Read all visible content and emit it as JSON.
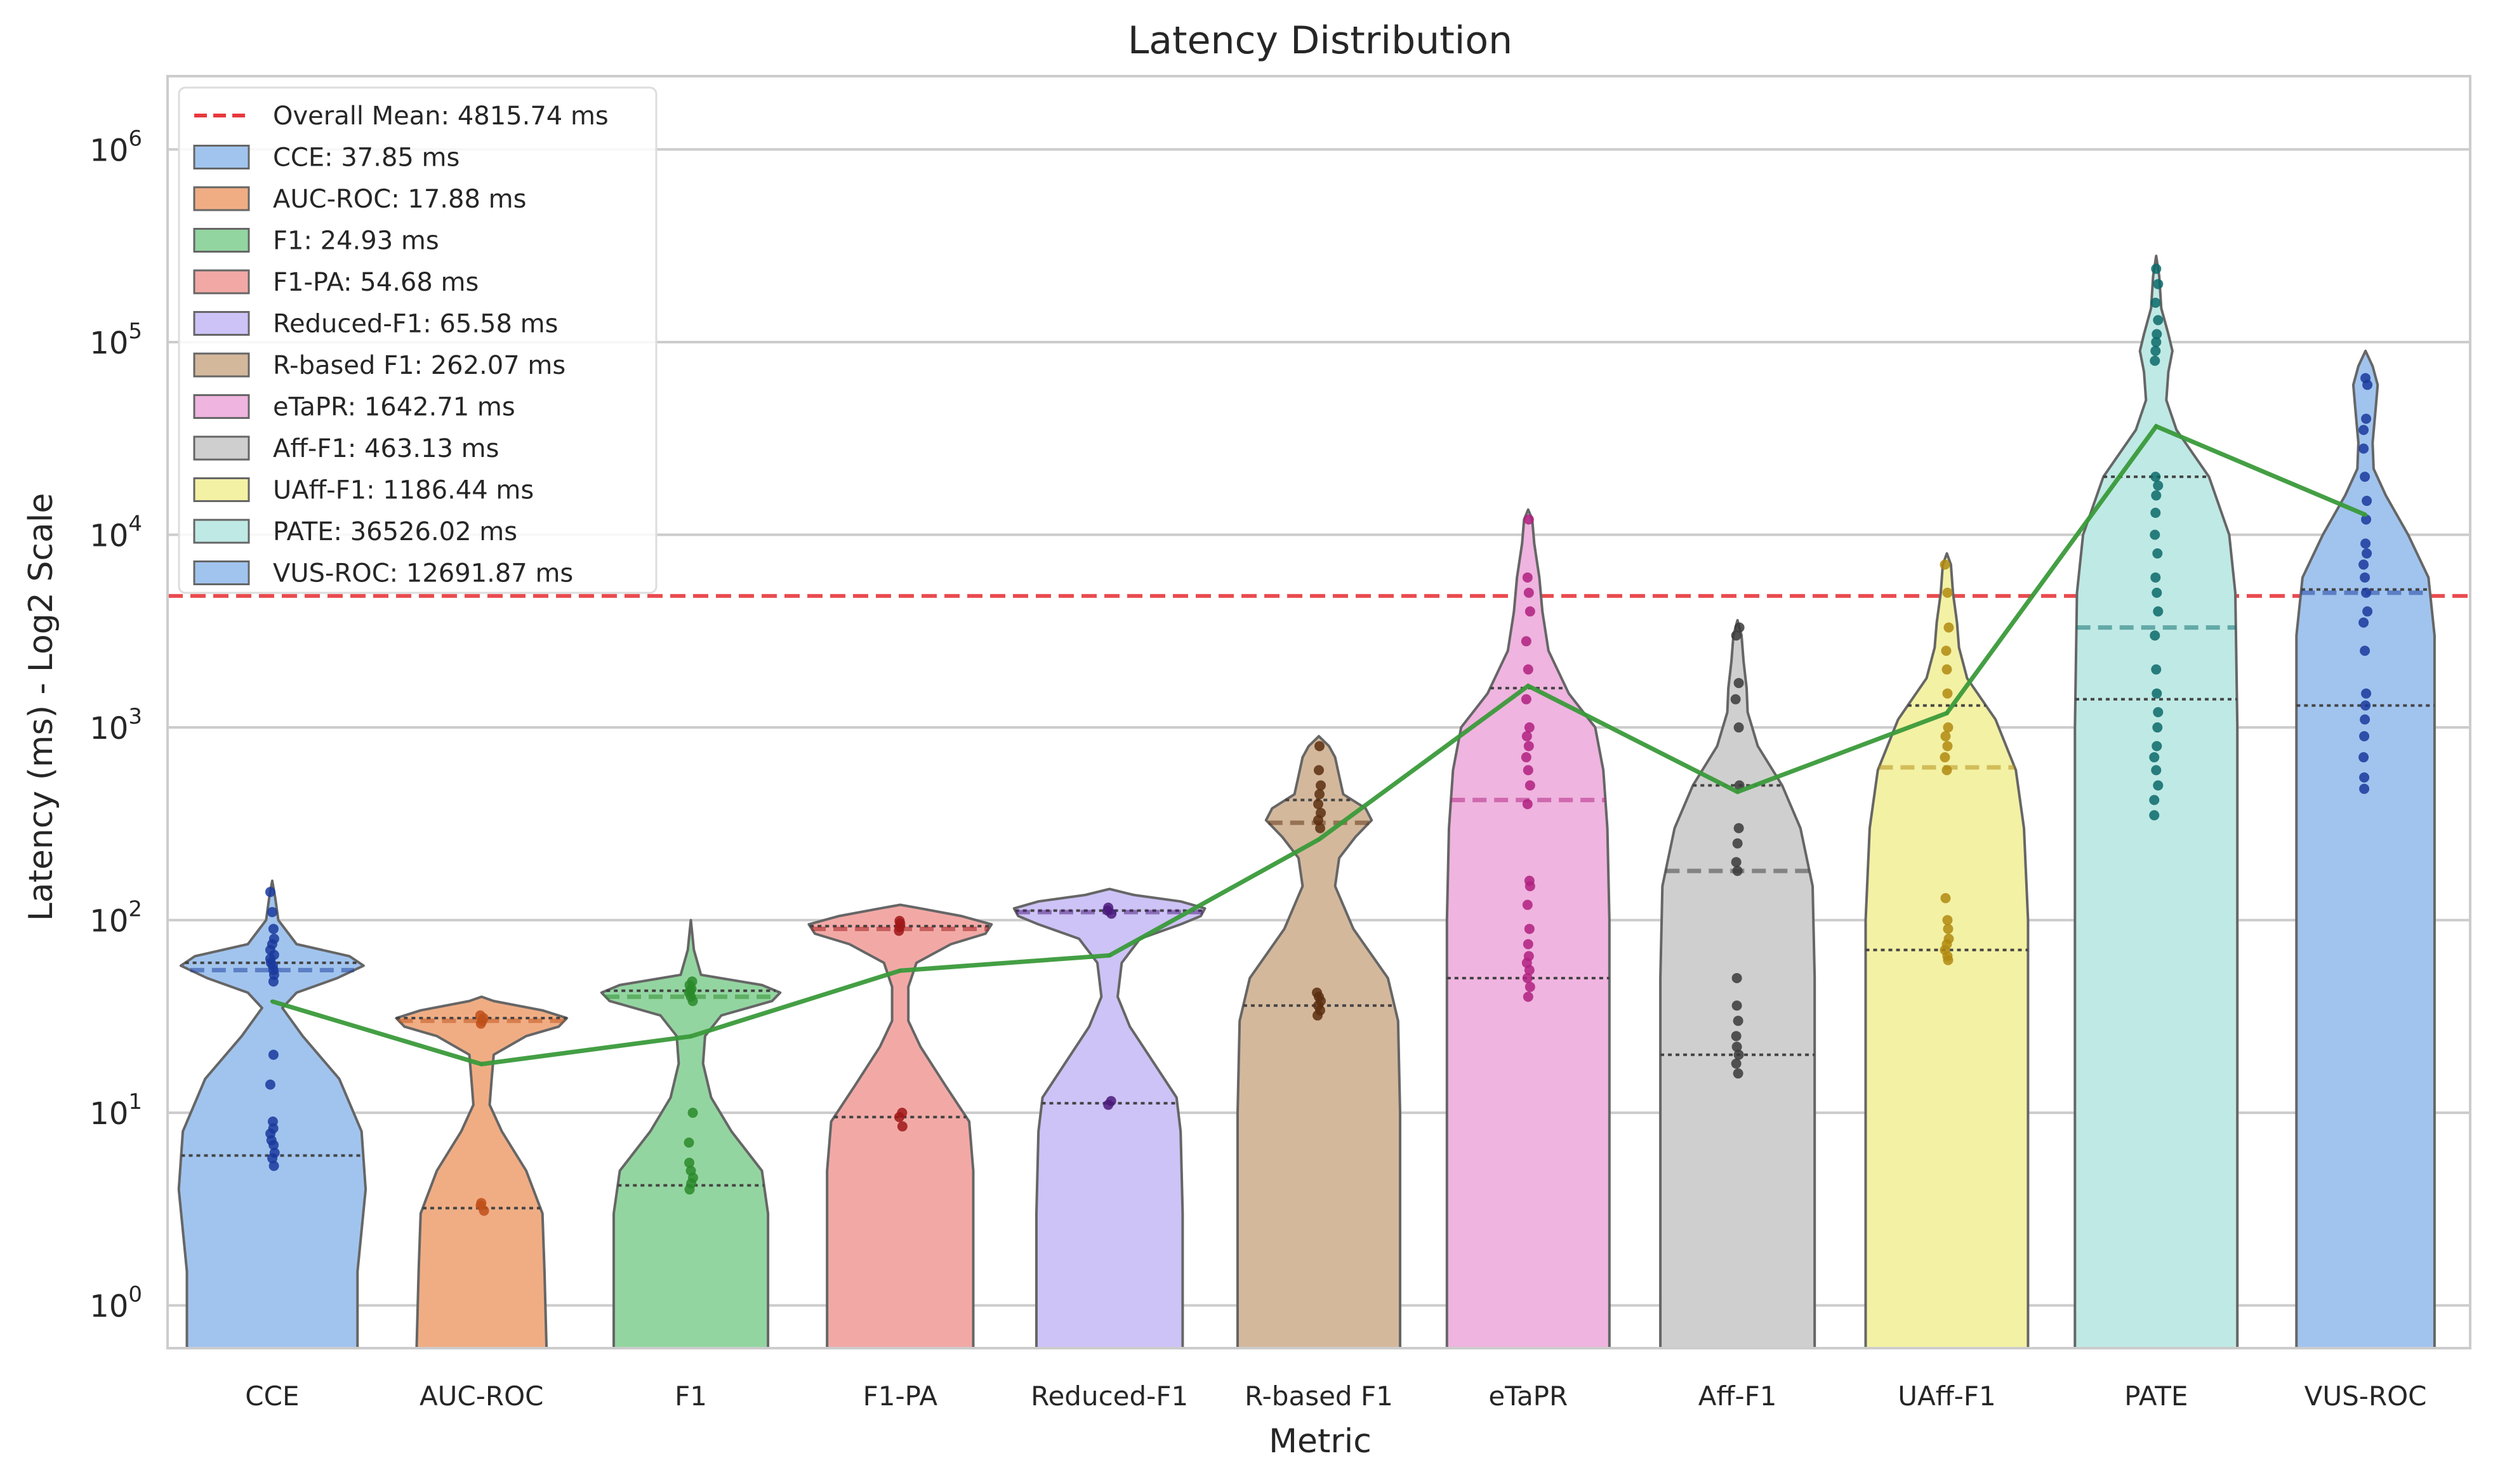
{
  "chart_data": {
    "type": "violin",
    "title": "Latency Distribution",
    "xlabel": "Metric",
    "ylabel": "Latency (ms) - Log2 Scale",
    "yscale": "log",
    "ylim": [
      0.6,
      2400000
    ],
    "y_ticks": [
      1,
      10,
      100,
      1000,
      10000,
      100000,
      1000000
    ],
    "y_tick_labels": [
      {
        "base": "10",
        "exp": "0"
      },
      {
        "base": "10",
        "exp": "1"
      },
      {
        "base": "10",
        "exp": "2"
      },
      {
        "base": "10",
        "exp": "3"
      },
      {
        "base": "10",
        "exp": "4"
      },
      {
        "base": "10",
        "exp": "5"
      },
      {
        "base": "10",
        "exp": "6"
      }
    ],
    "grid": true,
    "legend_position": "top-left",
    "overall_mean": {
      "value": 4815.74,
      "label": "Overall Mean: 4815.74 ms",
      "color": "#e8383d"
    },
    "mean_line_color": "#3a9a3a",
    "categories": [
      "CCE",
      "AUC-ROC",
      "F1",
      "F1-PA",
      "Reduced-F1",
      "R-based F1",
      "eTaPR",
      "Aff-F1",
      "UAff-F1",
      "PATE",
      "VUS-ROC"
    ],
    "series": [
      {
        "name": "CCE",
        "label": "CCE: 37.85 ms",
        "mean": 37.85,
        "color": "#a1c4ee",
        "dot": "#1a3a9c",
        "q1": 6,
        "median": 55,
        "q3": 60,
        "profile": [
          [
            0.6,
            0.42
          ],
          [
            1.5,
            0.42
          ],
          [
            4,
            0.46
          ],
          [
            8,
            0.44
          ],
          [
            15,
            0.33
          ],
          [
            25,
            0.15
          ],
          [
            35,
            0.05
          ],
          [
            42,
            0.12
          ],
          [
            50,
            0.32
          ],
          [
            58,
            0.45
          ],
          [
            65,
            0.38
          ],
          [
            75,
            0.12
          ],
          [
            100,
            0.03
          ],
          [
            130,
            0.015
          ],
          [
            160,
            0
          ]
        ],
        "points": [
          5.3,
          5.8,
          6.2,
          6.8,
          7.2,
          7.8,
          8.3,
          9,
          14,
          20,
          48,
          52,
          55,
          58,
          60,
          63,
          66,
          70,
          75,
          80,
          90,
          110,
          140
        ]
      },
      {
        "name": "AUC-ROC",
        "label": "AUC-ROC: 17.88 ms",
        "mean": 17.88,
        "color": "#f0ad84",
        "dot": "#c0501a",
        "q1": 3.2,
        "median": 30,
        "q3": 31,
        "profile": [
          [
            0.6,
            0.32
          ],
          [
            1.5,
            0.31
          ],
          [
            3,
            0.3
          ],
          [
            5,
            0.22
          ],
          [
            8,
            0.1
          ],
          [
            11,
            0.04
          ],
          [
            15,
            0.05
          ],
          [
            20,
            0.06
          ],
          [
            25,
            0.22
          ],
          [
            28,
            0.38
          ],
          [
            31,
            0.42
          ],
          [
            34,
            0.3
          ],
          [
            38,
            0.06
          ],
          [
            40,
            0
          ]
        ],
        "points": [
          3.1,
          3.3,
          3.4,
          29,
          30,
          31,
          32
        ]
      },
      {
        "name": "F1",
        "label": "F1: 24.93 ms",
        "mean": 24.93,
        "color": "#93d5a0",
        "dot": "#2a8a2a",
        "q1": 4.2,
        "median": 40,
        "q3": 43,
        "profile": [
          [
            0.6,
            0.38
          ],
          [
            1.5,
            0.38
          ],
          [
            3,
            0.38
          ],
          [
            5,
            0.35
          ],
          [
            8,
            0.2
          ],
          [
            12,
            0.1
          ],
          [
            18,
            0.06
          ],
          [
            25,
            0.07
          ],
          [
            32,
            0.15
          ],
          [
            38,
            0.4
          ],
          [
            42,
            0.44
          ],
          [
            46,
            0.35
          ],
          [
            52,
            0.05
          ],
          [
            70,
            0.015
          ],
          [
            100,
            0
          ]
        ],
        "points": [
          4,
          4.3,
          4.6,
          5,
          5.5,
          7,
          10,
          38,
          40,
          42,
          43,
          44,
          46,
          48
        ]
      },
      {
        "name": "F1-PA",
        "label": "F1-PA: 54.68 ms",
        "mean": 54.68,
        "color": "#f2a9a6",
        "dot": "#a01818",
        "q1": 9.5,
        "median": 90,
        "q3": 93,
        "profile": [
          [
            0.6,
            0.36
          ],
          [
            2,
            0.36
          ],
          [
            5,
            0.36
          ],
          [
            9,
            0.34
          ],
          [
            14,
            0.22
          ],
          [
            22,
            0.1
          ],
          [
            30,
            0.04
          ],
          [
            45,
            0.04
          ],
          [
            60,
            0.08
          ],
          [
            75,
            0.25
          ],
          [
            85,
            0.42
          ],
          [
            95,
            0.45
          ],
          [
            105,
            0.3
          ],
          [
            115,
            0.1
          ],
          [
            120,
            0
          ]
        ],
        "points": [
          8.5,
          9.5,
          10,
          88,
          92,
          96,
          99
        ]
      },
      {
        "name": "Reduced-F1",
        "label": "Reduced-F1: 65.58 ms",
        "mean": 65.58,
        "color": "#cdc3f6",
        "dot": "#4a1a7a",
        "q1": 11.2,
        "median": 110,
        "q3": 112,
        "profile": [
          [
            0.6,
            0.36
          ],
          [
            3,
            0.36
          ],
          [
            8,
            0.35
          ],
          [
            12,
            0.33
          ],
          [
            18,
            0.22
          ],
          [
            28,
            0.1
          ],
          [
            40,
            0.04
          ],
          [
            60,
            0.06
          ],
          [
            80,
            0.15
          ],
          [
            95,
            0.35
          ],
          [
            105,
            0.45
          ],
          [
            115,
            0.47
          ],
          [
            125,
            0.35
          ],
          [
            135,
            0.12
          ],
          [
            145,
            0
          ]
        ],
        "points": [
          11,
          11.5,
          108,
          112,
          116
        ]
      },
      {
        "name": "R-based F1",
        "label": "R-based F1: 262.07 ms",
        "mean": 262.07,
        "color": "#d4b89c",
        "dot": "#5a2e10",
        "q1": 36,
        "median": 320,
        "q3": 420,
        "profile": [
          [
            0.6,
            0.4
          ],
          [
            3,
            0.4
          ],
          [
            10,
            0.4
          ],
          [
            30,
            0.39
          ],
          [
            50,
            0.34
          ],
          [
            90,
            0.17
          ],
          [
            150,
            0.08
          ],
          [
            210,
            0.1
          ],
          [
            270,
            0.18
          ],
          [
            330,
            0.26
          ],
          [
            380,
            0.23
          ],
          [
            450,
            0.12
          ],
          [
            560,
            0.1
          ],
          [
            700,
            0.08
          ],
          [
            800,
            0.05
          ],
          [
            900,
            0
          ]
        ],
        "points": [
          32,
          34,
          36,
          38,
          40,
          42,
          300,
          330,
          360,
          400,
          450,
          500,
          600,
          800
        ]
      },
      {
        "name": "eTaPR",
        "label": "eTaPR: 1642.71 ms",
        "mean": 1642.71,
        "color": "#efb4df",
        "dot": "#b02080",
        "q1": 50,
        "median": 420,
        "q3": 1600,
        "profile": [
          [
            0.6,
            0.4
          ],
          [
            20,
            0.4
          ],
          [
            100,
            0.4
          ],
          [
            300,
            0.39
          ],
          [
            600,
            0.37
          ],
          [
            1000,
            0.33
          ],
          [
            1500,
            0.2
          ],
          [
            2500,
            0.1
          ],
          [
            4000,
            0.07
          ],
          [
            6000,
            0.055
          ],
          [
            9000,
            0.03
          ],
          [
            12000,
            0.02
          ],
          [
            13500,
            0
          ]
        ],
        "points": [
          40,
          45,
          50,
          55,
          60,
          65,
          75,
          90,
          120,
          150,
          160,
          400,
          500,
          600,
          700,
          800,
          900,
          1000,
          1400,
          2000,
          2800,
          4000,
          5000,
          6000,
          12000
        ]
      },
      {
        "name": "Aff-F1",
        "label": "Aff-F1: 463.13 ms",
        "mean": 463.13,
        "color": "#cfcfcf",
        "dot": "#3a3a3a",
        "q1": 20,
        "median": 180,
        "q3": 500,
        "profile": [
          [
            0.6,
            0.38
          ],
          [
            10,
            0.38
          ],
          [
            50,
            0.38
          ],
          [
            150,
            0.37
          ],
          [
            300,
            0.31
          ],
          [
            500,
            0.22
          ],
          [
            800,
            0.1
          ],
          [
            1200,
            0.05
          ],
          [
            1600,
            0.045
          ],
          [
            2200,
            0.03
          ],
          [
            3000,
            0.02
          ],
          [
            3600,
            0
          ]
        ],
        "points": [
          16,
          18,
          20,
          22,
          25,
          30,
          36,
          50,
          180,
          200,
          250,
          300,
          500,
          1000,
          1400,
          1700,
          3000,
          3300
        ]
      },
      {
        "name": "UAff-F1",
        "label": "UAff-F1: 1186.44 ms",
        "mean": 1186.44,
        "color": "#f3f1a4",
        "dot": "#b08a10",
        "q1": 70,
        "median": 620,
        "q3": 1300,
        "profile": [
          [
            0.6,
            0.4
          ],
          [
            20,
            0.4
          ],
          [
            100,
            0.4
          ],
          [
            300,
            0.38
          ],
          [
            600,
            0.34
          ],
          [
            1100,
            0.24
          ],
          [
            1800,
            0.1
          ],
          [
            2600,
            0.06
          ],
          [
            3500,
            0.05
          ],
          [
            5000,
            0.03
          ],
          [
            7000,
            0.02
          ],
          [
            8000,
            0
          ]
        ],
        "points": [
          62,
          65,
          70,
          75,
          80,
          90,
          100,
          130,
          600,
          700,
          800,
          900,
          1000,
          1500,
          2000,
          2500,
          3300,
          5000,
          7000
        ]
      },
      {
        "name": "PATE",
        "label": "PATE: 36526.02 ms",
        "mean": 36526.02,
        "color": "#bfe9e5",
        "dot": "#0a6a6a",
        "q1": 1400,
        "median": 3300,
        "q3": 20000,
        "profile": [
          [
            0.6,
            0.4
          ],
          [
            50,
            0.4
          ],
          [
            1000,
            0.4
          ],
          [
            5000,
            0.39
          ],
          [
            10000,
            0.36
          ],
          [
            20000,
            0.26
          ],
          [
            35000,
            0.1
          ],
          [
            50000,
            0.05
          ],
          [
            70000,
            0.06
          ],
          [
            90000,
            0.08
          ],
          [
            110000,
            0.06
          ],
          [
            150000,
            0.025
          ],
          [
            220000,
            0.015
          ],
          [
            280000,
            0
          ]
        ],
        "points": [
          350,
          420,
          500,
          600,
          700,
          800,
          1000,
          1200,
          1500,
          2000,
          3000,
          4000,
          5000,
          6000,
          8000,
          10000,
          13000,
          16000,
          18000,
          20000,
          80000,
          90000,
          100000,
          110000,
          130000,
          160000,
          200000,
          240000
        ]
      },
      {
        "name": "VUS-ROC",
        "label": "VUS-ROC: 12691.87 ms",
        "mean": 12691.87,
        "color": "#a1c4ee",
        "dot": "#1a3a9c",
        "q1": 1300,
        "median": 5000,
        "q3": 5200,
        "profile": [
          [
            0.6,
            0.34
          ],
          [
            50,
            0.34
          ],
          [
            1000,
            0.34
          ],
          [
            3000,
            0.34
          ],
          [
            6000,
            0.31
          ],
          [
            10000,
            0.21
          ],
          [
            16000,
            0.1
          ],
          [
            22000,
            0.04
          ],
          [
            30000,
            0.035
          ],
          [
            45000,
            0.05
          ],
          [
            60000,
            0.06
          ],
          [
            75000,
            0.035
          ],
          [
            90000,
            0
          ]
        ],
        "points": [
          480,
          550,
          700,
          900,
          1100,
          1300,
          1500,
          2500,
          3500,
          4000,
          5000,
          6000,
          7000,
          8000,
          9000,
          12000,
          15000,
          20000,
          28000,
          35000,
          40000,
          60000,
          65000
        ]
      }
    ]
  }
}
